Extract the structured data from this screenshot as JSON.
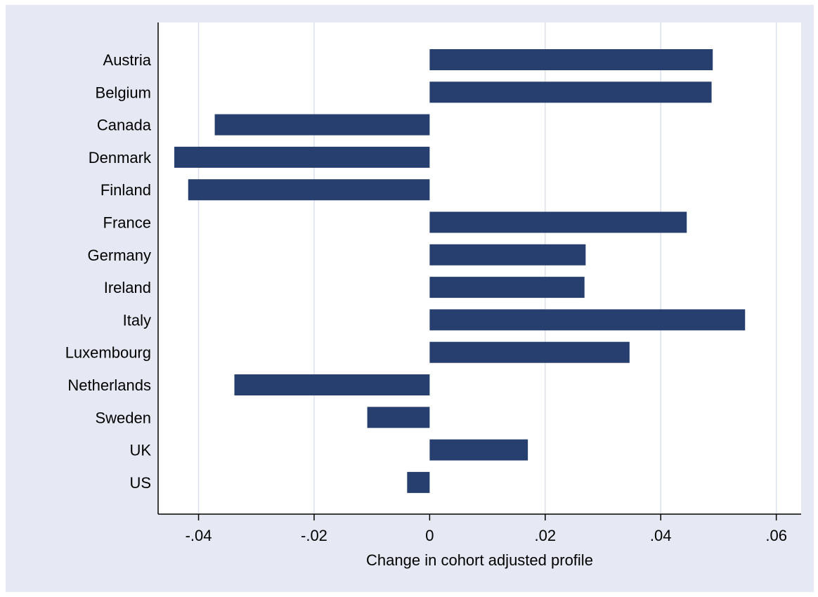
{
  "chart_data": {
    "type": "bar",
    "orientation": "horizontal",
    "categories": [
      "Austria",
      "Belgium",
      "Canada",
      "Denmark",
      "Finland",
      "France",
      "Germany",
      "Ireland",
      "Italy",
      "Luxembourg",
      "Netherlands",
      "Sweden",
      "UK",
      "US"
    ],
    "values": [
      0.049,
      0.0488,
      -0.0372,
      -0.0442,
      -0.0418,
      0.0445,
      0.027,
      0.0268,
      0.0546,
      0.0346,
      -0.0338,
      -0.0108,
      0.017,
      -0.0039
    ],
    "xlabel": "Change in cohort adjusted profile",
    "ylabel": "",
    "xlim": [
      -0.047,
      0.0643
    ],
    "xticks": [
      -0.04,
      -0.02,
      0,
      0.02,
      0.04,
      0.06
    ],
    "xtick_labels": [
      "-.04",
      "-.02",
      "0",
      ".02",
      ".04",
      ".06"
    ],
    "grid": "vertical",
    "legend": "none",
    "colors": {
      "bar": "#263f6e",
      "background": "#e6e9f4",
      "plot_background": "#ffffff",
      "grid": "#dce0ec",
      "axis": "#000000"
    }
  }
}
